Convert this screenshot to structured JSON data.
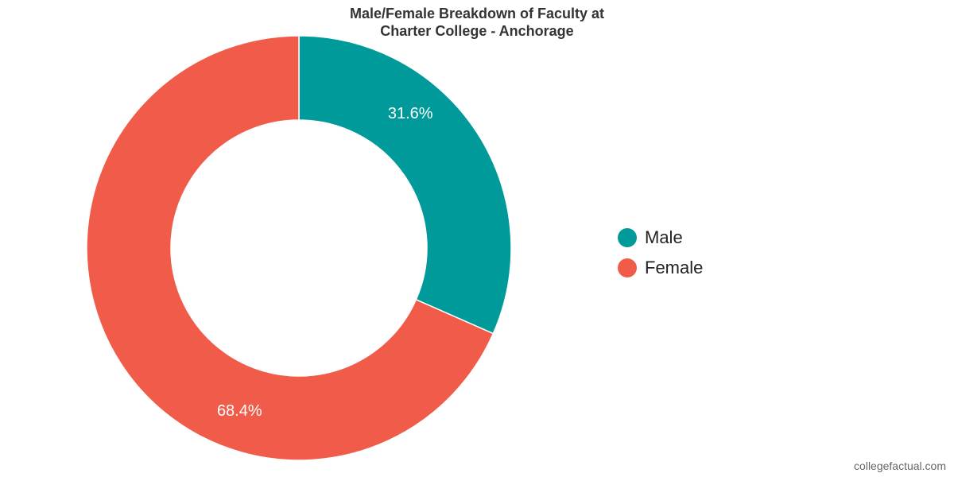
{
  "title_lines": [
    "Male/Female Breakdown of Faculty at",
    "Charter College - Anchorage"
  ],
  "watermark": "collegefactual.com",
  "chart_data": {
    "type": "pie",
    "donut": true,
    "title": "Male/Female Breakdown of Faculty at Charter College - Anchorage",
    "legend_position": "right",
    "slices": [
      {
        "name": "Male",
        "value": 31.6,
        "label": "31.6%",
        "color": "#009a9a"
      },
      {
        "name": "Female",
        "value": 68.4,
        "label": "68.4%",
        "color": "#f05b4a"
      }
    ]
  }
}
